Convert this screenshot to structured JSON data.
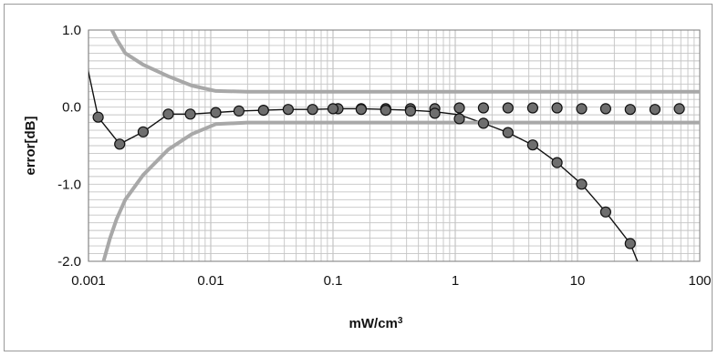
{
  "chart_data": {
    "type": "scatter",
    "title": "",
    "xlabel": "mW/cm",
    "xlabel_superscript": "3",
    "ylabel": "error[dB]",
    "xscale": "log",
    "xlim": [
      0.001,
      100
    ],
    "ylim": [
      -2.0,
      1.0
    ],
    "x_ticks": [
      0.001,
      0.01,
      0.1,
      1,
      10,
      100
    ],
    "x_tick_labels": [
      "0.001",
      "0.01",
      "0.1",
      "1",
      "10",
      "100"
    ],
    "y_ticks": [
      -2.0,
      -1.0,
      0.0,
      1.0
    ],
    "y_tick_labels": [
      "-2.0",
      "-1.0",
      "0.0",
      "1.0"
    ],
    "grid": true,
    "legend": "none",
    "colors": {
      "marker_fill": "#6e6e6e",
      "marker_edge": "#111111",
      "fit_line": "#111111",
      "bound_line": "#a8a8a8",
      "grid": "#c4c4c4"
    },
    "series": [
      {
        "kind": "markers",
        "x": [
          0.0012,
          0.0018,
          0.0028,
          0.0045,
          0.0068,
          0.011,
          0.017,
          0.027,
          0.043,
          0.068,
          0.11,
          0.17,
          0.27,
          0.43,
          0.68,
          1.08
        ],
        "y": [
          -0.13,
          -0.48,
          -0.32,
          -0.09,
          -0.09,
          -0.07,
          -0.05,
          -0.04,
          -0.03,
          -0.03,
          -0.02,
          -0.02,
          -0.02,
          -0.02,
          -0.02,
          -0.01
        ]
      },
      {
        "kind": "markers",
        "x": [
          0.1,
          0.17,
          0.27,
          0.43,
          0.68,
          1.08,
          1.7,
          2.7,
          4.3,
          6.8,
          10.8,
          17,
          27,
          43,
          68
        ],
        "y": [
          -0.02,
          -0.03,
          -0.04,
          -0.05,
          -0.08,
          -0.15,
          -0.21,
          -0.33,
          -0.49,
          -0.72,
          -1.0,
          -1.36,
          -1.77,
          -0.03,
          -0.02
        ]
      },
      {
        "kind": "markers",
        "x": [
          1.7,
          2.7,
          4.3,
          6.8,
          10.8,
          17,
          27
        ],
        "y": [
          -0.01,
          -0.01,
          -0.01,
          -0.01,
          -0.02,
          -0.02,
          -0.03
        ]
      },
      {
        "kind": "line",
        "x": [
          0.00098,
          0.0012,
          0.0018,
          0.0028,
          0.0045,
          0.0068,
          0.011,
          0.017,
          0.027,
          0.043,
          0.068,
          0.11,
          0.17,
          0.27,
          0.43,
          0.68,
          1.08,
          1.7,
          2.7,
          4.3,
          6.8,
          10.8,
          17,
          27,
          31
        ],
        "y": [
          0.52,
          -0.13,
          -0.48,
          -0.32,
          -0.09,
          -0.09,
          -0.07,
          -0.05,
          -0.04,
          -0.03,
          -0.03,
          -0.02,
          -0.02,
          -0.03,
          -0.04,
          -0.06,
          -0.1,
          -0.21,
          -0.33,
          -0.49,
          -0.72,
          -1.0,
          -1.36,
          -1.77,
          -2.0
        ]
      },
      {
        "kind": "bound",
        "x": [
          0.0015,
          0.0017,
          0.002,
          0.0028,
          0.0045,
          0.007,
          0.011,
          0.02,
          0.05,
          0.1,
          1,
          10,
          100
        ],
        "y": [
          1.05,
          0.88,
          0.7,
          0.55,
          0.4,
          0.28,
          0.21,
          0.2,
          0.2,
          0.2,
          0.2,
          0.2,
          0.2
        ]
      },
      {
        "kind": "bound",
        "x": [
          0.0013,
          0.0015,
          0.0017,
          0.002,
          0.0028,
          0.0045,
          0.007,
          0.011,
          0.02,
          0.05,
          0.1,
          1,
          10,
          100
        ],
        "y": [
          -2.05,
          -1.7,
          -1.45,
          -1.2,
          -0.88,
          -0.55,
          -0.35,
          -0.22,
          -0.2,
          -0.2,
          -0.2,
          -0.2,
          -0.2,
          -0.2
        ]
      }
    ]
  }
}
